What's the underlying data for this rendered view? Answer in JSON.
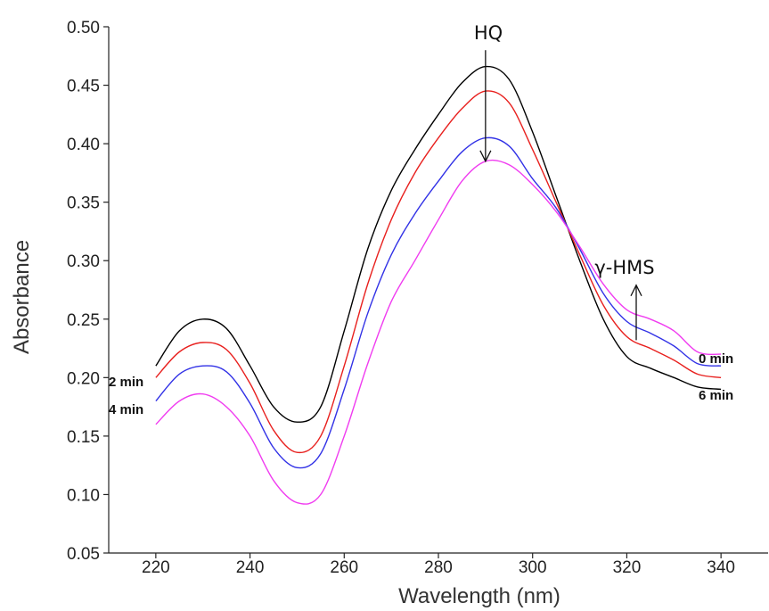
{
  "chart_data": {
    "type": "line",
    "title": "",
    "xlabel": "Wavelength (nm)",
    "ylabel": "Absorbance",
    "xlim": [
      210,
      350
    ],
    "ylim": [
      0.05,
      0.5
    ],
    "xticks": [
      220,
      240,
      260,
      280,
      300,
      320,
      340
    ],
    "yticks": [
      "0.05",
      "0.10",
      "0.15",
      "0.20",
      "0.25",
      "0.30",
      "0.35",
      "0.40",
      "0.45",
      "0.50"
    ],
    "grid": false,
    "series": [
      {
        "color": "#000000",
        "points": [
          [
            220,
            0.21
          ],
          [
            225,
            0.24
          ],
          [
            230,
            0.25
          ],
          [
            235,
            0.242
          ],
          [
            240,
            0.21
          ],
          [
            245,
            0.175
          ],
          [
            250,
            0.162
          ],
          [
            255,
            0.175
          ],
          [
            260,
            0.24
          ],
          [
            265,
            0.31
          ],
          [
            270,
            0.36
          ],
          [
            275,
            0.395
          ],
          [
            280,
            0.425
          ],
          [
            285,
            0.452
          ],
          [
            290,
            0.466
          ],
          [
            295,
            0.455
          ],
          [
            300,
            0.41
          ],
          [
            305,
            0.355
          ],
          [
            310,
            0.3
          ],
          [
            315,
            0.25
          ],
          [
            320,
            0.218
          ],
          [
            325,
            0.208
          ],
          [
            330,
            0.2
          ],
          [
            335,
            0.192
          ],
          [
            340,
            0.19
          ]
        ]
      },
      {
        "color": "#e8201e",
        "points": [
          [
            220,
            0.2
          ],
          [
            225,
            0.222
          ],
          [
            230,
            0.23
          ],
          [
            235,
            0.224
          ],
          [
            240,
            0.195
          ],
          [
            245,
            0.155
          ],
          [
            250,
            0.136
          ],
          [
            255,
            0.15
          ],
          [
            260,
            0.21
          ],
          [
            265,
            0.28
          ],
          [
            270,
            0.335
          ],
          [
            275,
            0.375
          ],
          [
            280,
            0.405
          ],
          [
            285,
            0.43
          ],
          [
            290,
            0.445
          ],
          [
            295,
            0.435
          ],
          [
            300,
            0.395
          ],
          [
            305,
            0.35
          ],
          [
            310,
            0.305
          ],
          [
            315,
            0.262
          ],
          [
            320,
            0.235
          ],
          [
            325,
            0.225
          ],
          [
            330,
            0.215
          ],
          [
            335,
            0.203
          ],
          [
            340,
            0.2
          ]
        ]
      },
      {
        "color": "#3232e6",
        "points": [
          [
            220,
            0.18
          ],
          [
            225,
            0.203
          ],
          [
            230,
            0.21
          ],
          [
            235,
            0.205
          ],
          [
            240,
            0.178
          ],
          [
            245,
            0.14
          ],
          [
            250,
            0.123
          ],
          [
            255,
            0.135
          ],
          [
            260,
            0.19
          ],
          [
            265,
            0.255
          ],
          [
            270,
            0.305
          ],
          [
            275,
            0.34
          ],
          [
            280,
            0.368
          ],
          [
            285,
            0.393
          ],
          [
            290,
            0.405
          ],
          [
            295,
            0.398
          ],
          [
            300,
            0.37
          ],
          [
            305,
            0.345
          ],
          [
            310,
            0.31
          ],
          [
            315,
            0.272
          ],
          [
            320,
            0.248
          ],
          [
            325,
            0.238
          ],
          [
            330,
            0.227
          ],
          [
            335,
            0.212
          ],
          [
            340,
            0.21
          ]
        ]
      },
      {
        "color": "#f03cf0",
        "points": [
          [
            220,
            0.16
          ],
          [
            225,
            0.18
          ],
          [
            230,
            0.186
          ],
          [
            235,
            0.175
          ],
          [
            240,
            0.15
          ],
          [
            245,
            0.112
          ],
          [
            250,
            0.093
          ],
          [
            255,
            0.1
          ],
          [
            260,
            0.15
          ],
          [
            265,
            0.212
          ],
          [
            270,
            0.265
          ],
          [
            275,
            0.3
          ],
          [
            280,
            0.335
          ],
          [
            285,
            0.368
          ],
          [
            290,
            0.385
          ],
          [
            295,
            0.382
          ],
          [
            300,
            0.365
          ],
          [
            305,
            0.342
          ],
          [
            310,
            0.312
          ],
          [
            315,
            0.28
          ],
          [
            320,
            0.258
          ],
          [
            325,
            0.25
          ],
          [
            330,
            0.24
          ],
          [
            335,
            0.222
          ],
          [
            340,
            0.22
          ]
        ]
      }
    ],
    "annotations": {
      "hq": "HQ",
      "hms": "γ-HMS",
      "t2": "2 min",
      "t4": "4 min",
      "t0": "0 min",
      "t6": "6 min"
    }
  }
}
